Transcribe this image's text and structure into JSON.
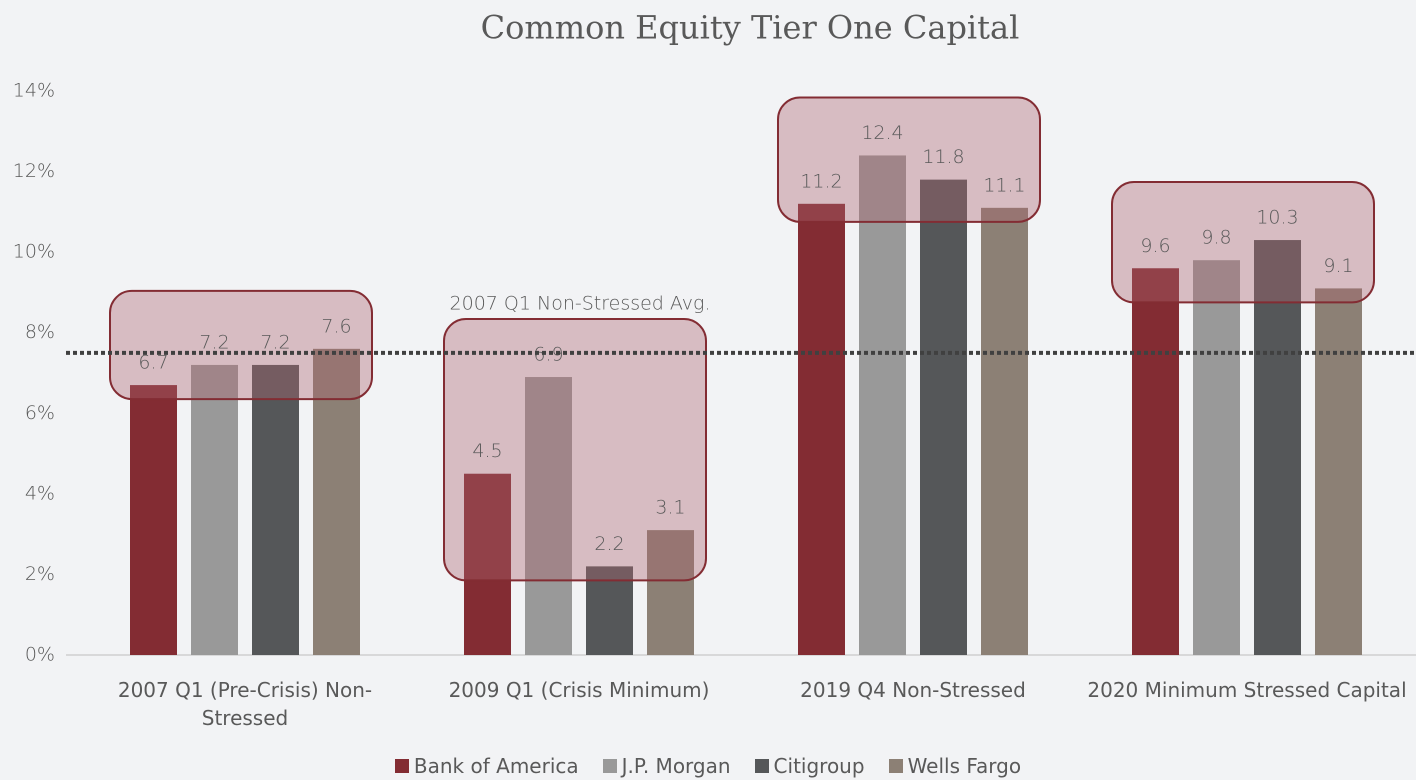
{
  "chart_data": {
    "type": "bar",
    "title": "Common Equity Tier One Capital",
    "categories": [
      "2007 Q1 (Pre-Crisis) Non-Stressed",
      "2009 Q1 (Crisis Minimum)",
      "2019 Q4 Non-Stressed",
      "2020 Minimum Stressed Capital"
    ],
    "series": [
      {
        "name": "Bank of America",
        "color": "#832c33",
        "values": [
          6.7,
          4.5,
          11.2,
          9.6
        ]
      },
      {
        "name": "J.P. Morgan",
        "color": "#999999",
        "values": [
          7.2,
          6.9,
          12.4,
          9.8
        ]
      },
      {
        "name": "Citigroup",
        "color": "#555759",
        "values": [
          7.2,
          2.2,
          11.8,
          10.3
        ]
      },
      {
        "name": "Wells Fargo",
        "color": "#8c8075",
        "values": [
          7.6,
          3.1,
          11.1,
          9.1
        ]
      }
    ],
    "ylim": [
      0,
      14
    ],
    "yticks": [
      {
        "value": 0,
        "label": "0%"
      },
      {
        "value": 2,
        "label": "2%"
      },
      {
        "value": 4,
        "label": "4%"
      },
      {
        "value": 6,
        "label": "6%"
      },
      {
        "value": 8,
        "label": "8%"
      },
      {
        "value": 10,
        "label": "10%"
      },
      {
        "value": 12,
        "label": "12%"
      },
      {
        "value": 14,
        "label": "14%"
      }
    ],
    "reference_line": {
      "label": "2007 Q1 Non-Stressed Avg.",
      "value": 7.5,
      "color": "#404040"
    },
    "grid": false,
    "legend": "bottom"
  }
}
